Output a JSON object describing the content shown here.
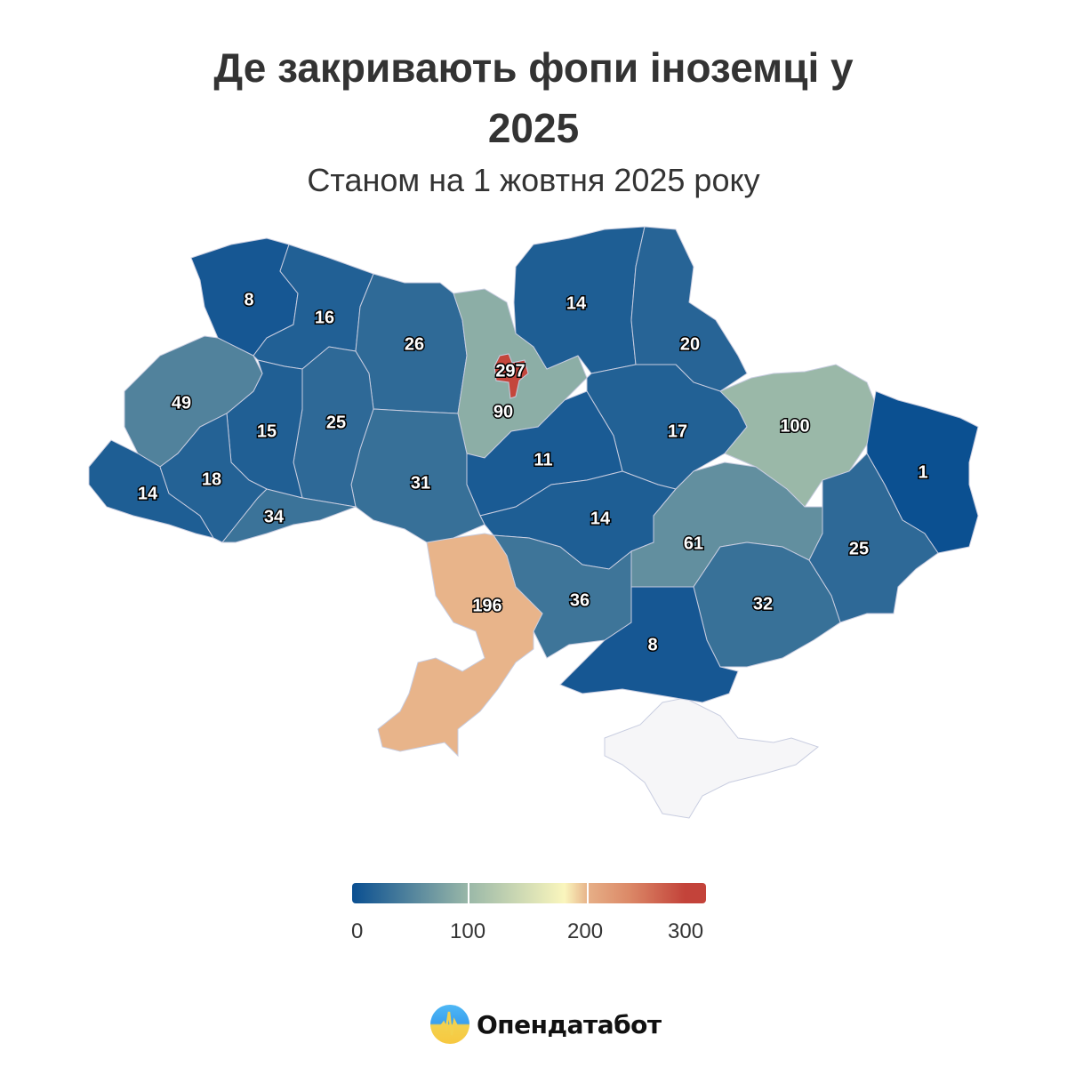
{
  "title_line1": "Де закривають фопи іноземці у",
  "title_line2": "2025",
  "subtitle": "Станом на 1 жовтня 2025 року",
  "map": {
    "type": "choropleth",
    "values": [
      8,
      16,
      26,
      90,
      297,
      14,
      20,
      100,
      1,
      17,
      11,
      14,
      61,
      25,
      32,
      8,
      36,
      196,
      31,
      25,
      15,
      49,
      14,
      18,
      34
    ],
    "no_data_region_color": "#f6f6f8",
    "border_color": "#c8cde0"
  },
  "color_scale": {
    "stops": [
      {
        "value": 0,
        "color": "#0a4f91"
      },
      {
        "value": 100,
        "color": "#9ab8a8"
      },
      {
        "value": 150,
        "color": "#faf6bd"
      },
      {
        "value": 200,
        "color": "#e6ae86"
      },
      {
        "value": 300,
        "color": "#c3433a"
      }
    ],
    "ticks": [
      "0",
      "100",
      "200",
      "300"
    ],
    "range": [
      0,
      300
    ]
  },
  "brand": {
    "name": "Опендатабот"
  }
}
